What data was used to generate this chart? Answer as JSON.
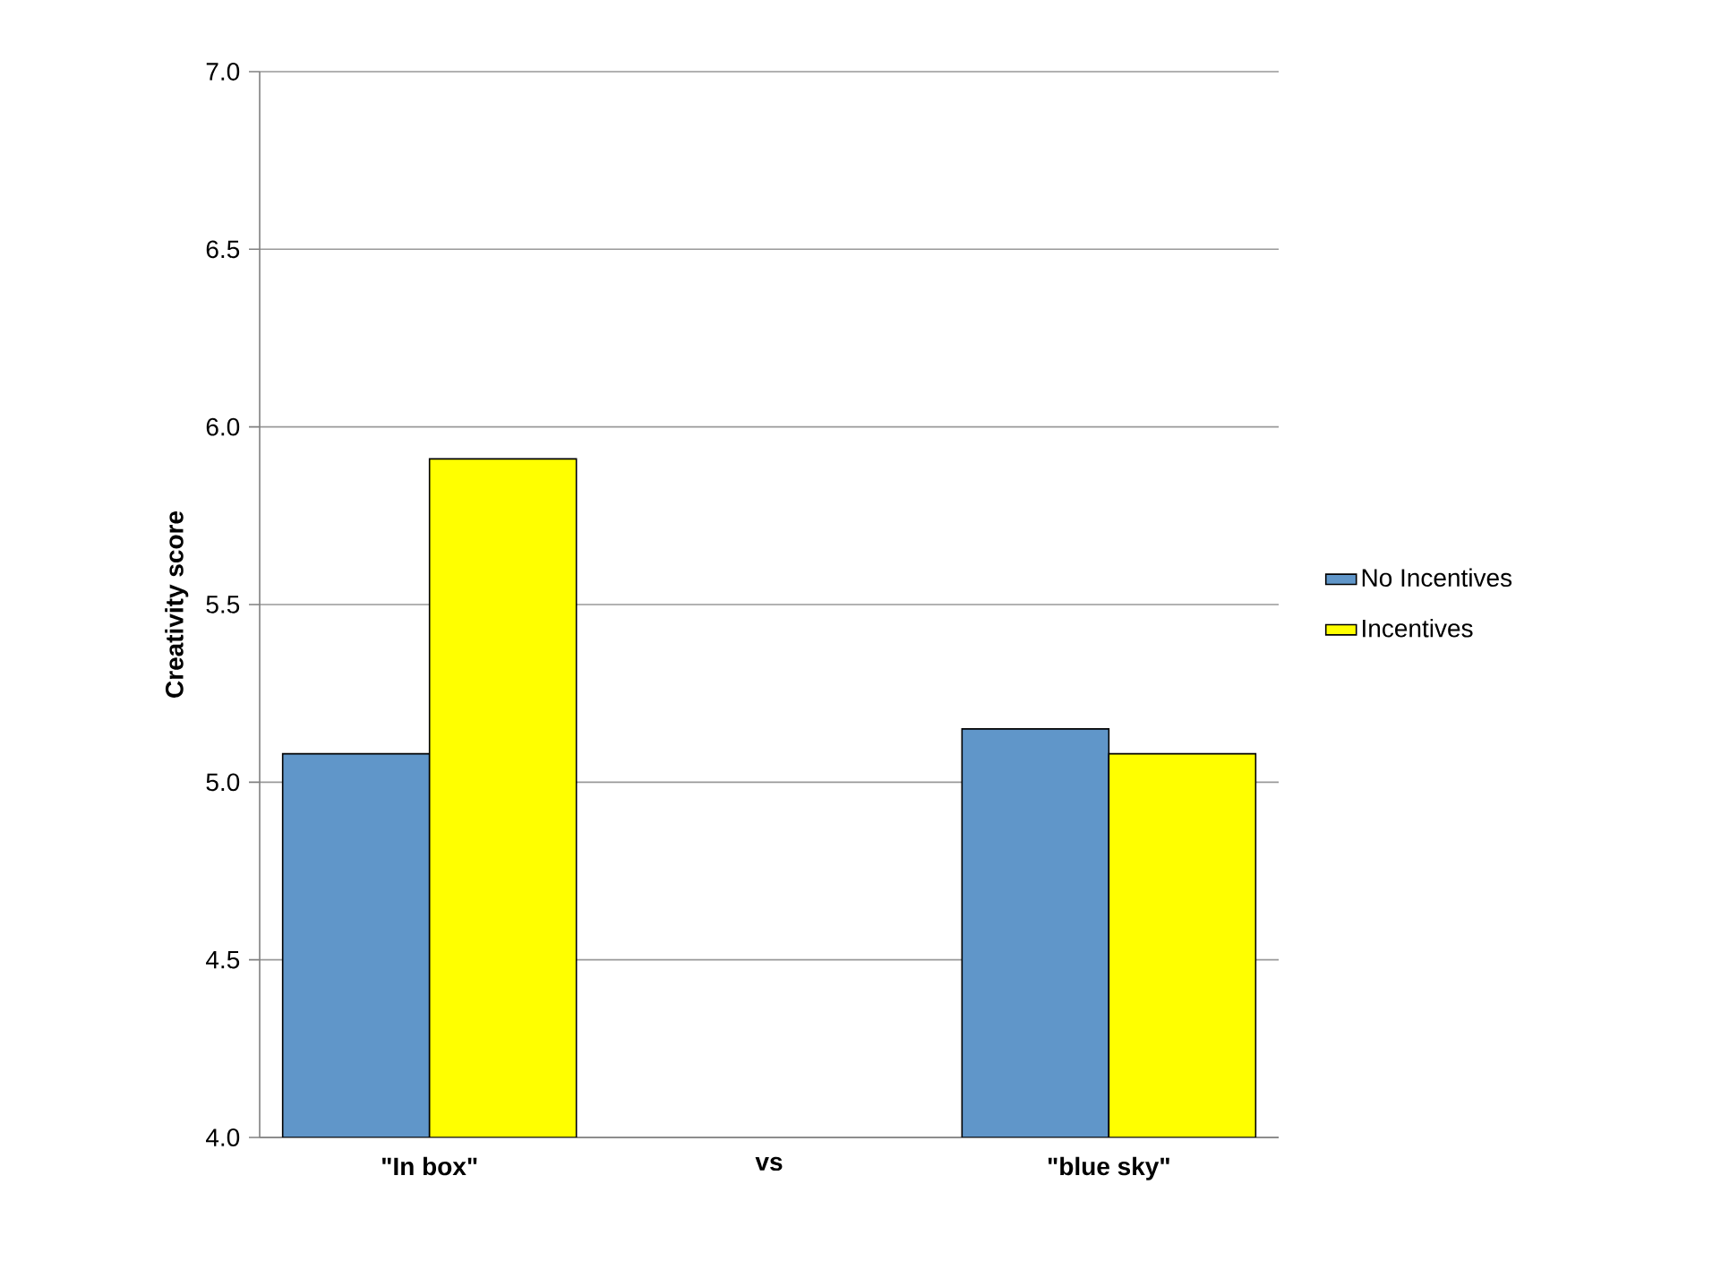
{
  "chart_data": {
    "type": "bar",
    "ylabel": "Creativity score",
    "categories": [
      "\"In box\"",
      "vs",
      "\"blue sky\""
    ],
    "series": [
      {
        "name": "No Incentives",
        "color": "#6096c9",
        "values": [
          5.08,
          null,
          5.15
        ]
      },
      {
        "name": "Incentives",
        "color": "#ffff00",
        "values": [
          5.91,
          null,
          5.08
        ]
      }
    ],
    "ylim": [
      4.0,
      7.0
    ],
    "yticks": [
      {
        "value": 4.0,
        "label": "4.0"
      },
      {
        "value": 4.5,
        "label": "4.5"
      },
      {
        "value": 5.0,
        "label": "5.0"
      },
      {
        "value": 5.5,
        "label": "5.5"
      },
      {
        "value": 6.0,
        "label": "6.0"
      },
      {
        "value": 6.5,
        "label": "6.5"
      },
      {
        "value": 7.0,
        "label": "7.0"
      }
    ],
    "grid": "y",
    "legend": "right"
  }
}
